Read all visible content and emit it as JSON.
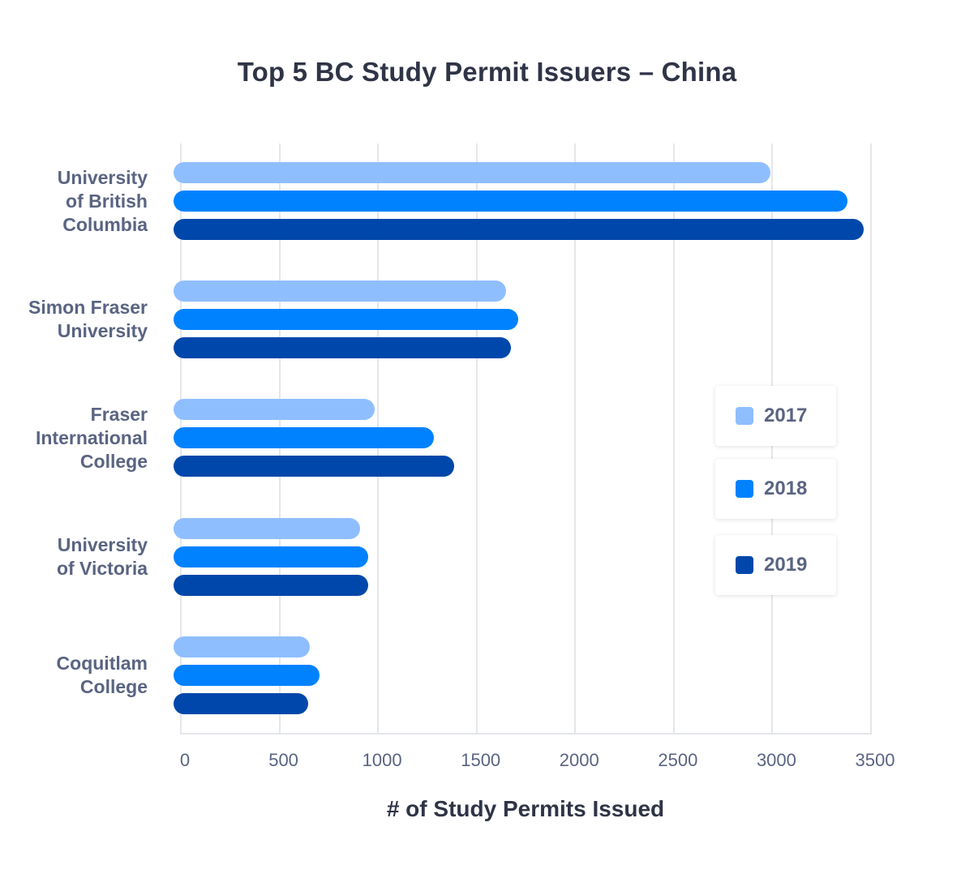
{
  "chart_data": {
    "type": "bar",
    "orientation": "horizontal",
    "title": "Top 5 BC Study Permit Issuers – China",
    "xlabel": "# of Study Permits Issued",
    "ylabel": "",
    "xlim": [
      0,
      3500
    ],
    "x_ticks": [
      "0",
      "500",
      "1000",
      "1500",
      "2000",
      "2500",
      "3000",
      "3500"
    ],
    "grid": "vertical",
    "legend_position": "right-inside",
    "categories": [
      "University\nof British\nColumbia",
      "Simon Fraser\nUniversity",
      "Fraser\nInternational\nCollege",
      "University\nof Victoria",
      "Coquitlam\nCollege"
    ],
    "series": [
      {
        "name": "2017",
        "color": "#8fbeff",
        "values": [
          2990,
          1650,
          985,
          910,
          655
        ]
      },
      {
        "name": "2018",
        "color": "#0082ff",
        "values": [
          3380,
          1710,
          1285,
          950,
          705
        ]
      },
      {
        "name": "2019",
        "color": "#0047ab",
        "values": [
          3465,
          1675,
          1385,
          950,
          645
        ]
      }
    ]
  }
}
